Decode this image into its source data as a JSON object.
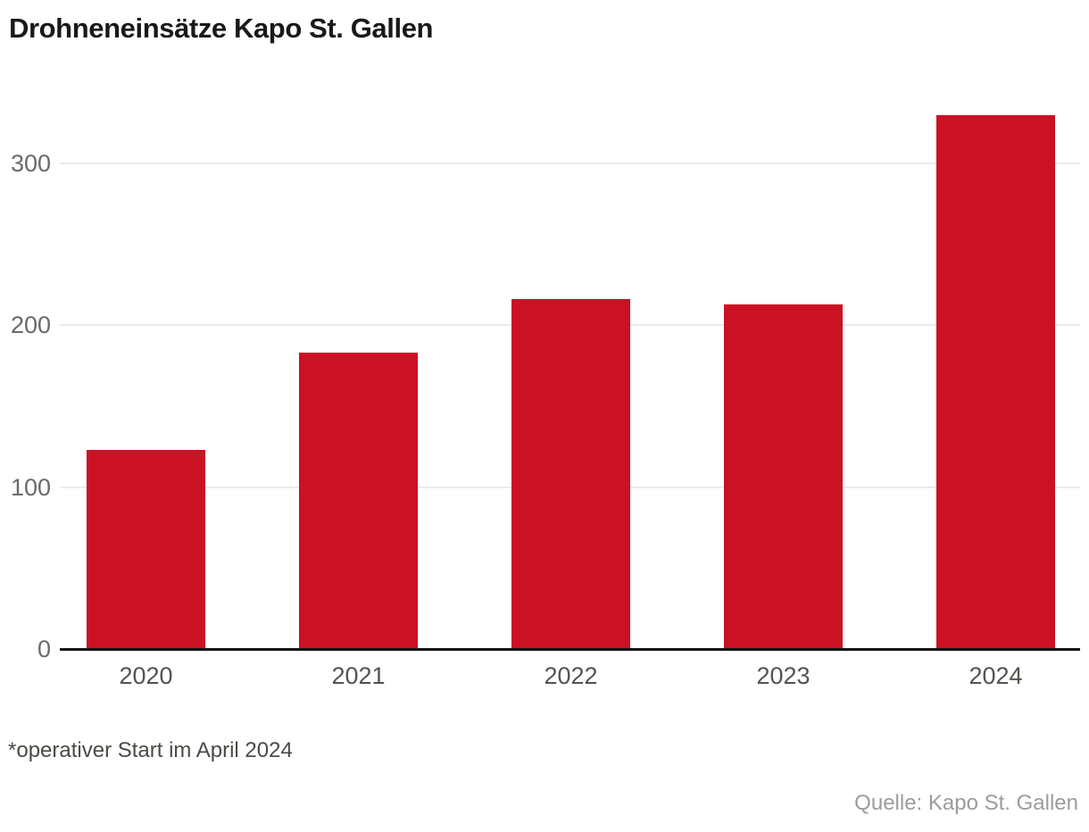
{
  "chart_data": {
    "type": "bar",
    "title": "Drohneneinsätze Kapo St. Gallen",
    "categories": [
      "2020",
      "2021",
      "2022",
      "2023",
      "2024"
    ],
    "values": [
      123,
      183,
      216,
      213,
      330
    ],
    "yticks": [
      0,
      100,
      200,
      300
    ],
    "ylim": [
      0,
      346
    ],
    "xlabel": "",
    "ylabel": "",
    "grid": "horizontal-light",
    "legend": false,
    "bar_color": "#cb1124",
    "footnote": "*operativer Start im April 2024",
    "source": "Quelle: Kapo St. Gallen",
    "colors": {
      "title": "#191919",
      "axis_line": "#141414",
      "gridline": "#ebebeb",
      "ytick_label": "#6b6a66",
      "xtick_label": "#55534e",
      "footnote": "#4b4a45",
      "source": "#9c9c9c",
      "background": "#ffffff"
    }
  }
}
